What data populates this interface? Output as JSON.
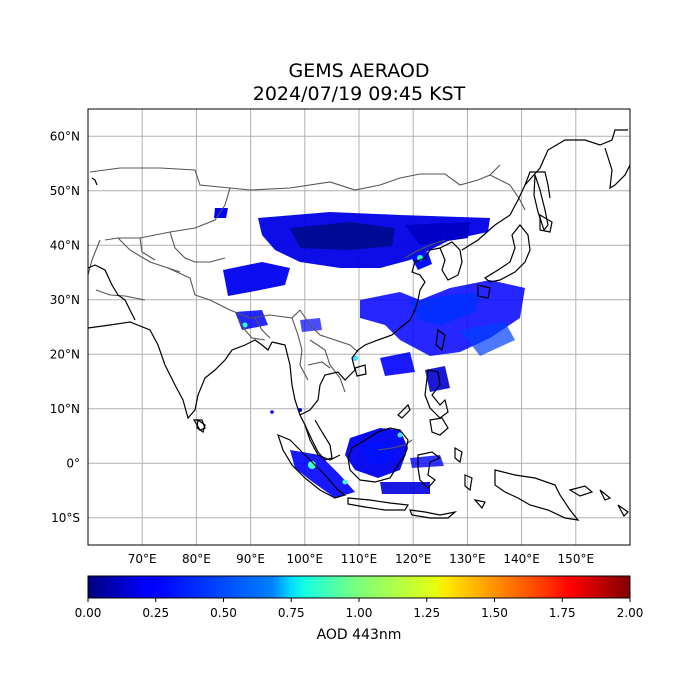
{
  "title_line1": "GEMS AERAOD",
  "title_line2": "2024/07/19 09:45 KST",
  "map": {
    "lon_range": [
      60,
      160
    ],
    "lat_range": [
      -15,
      65
    ],
    "lon_ticks": [
      {
        "value": 70,
        "label": "70°E"
      },
      {
        "value": 80,
        "label": "80°E"
      },
      {
        "value": 90,
        "label": "90°E"
      },
      {
        "value": 100,
        "label": "100°E"
      },
      {
        "value": 110,
        "label": "110°E"
      },
      {
        "value": 120,
        "label": "120°E"
      },
      {
        "value": 130,
        "label": "130°E"
      },
      {
        "value": 140,
        "label": "140°E"
      },
      {
        "value": 150,
        "label": "150°E"
      }
    ],
    "lat_ticks": [
      {
        "value": 60,
        "label": "60°N"
      },
      {
        "value": 50,
        "label": "50°N"
      },
      {
        "value": 40,
        "label": "40°N"
      },
      {
        "value": 30,
        "label": "30°N"
      },
      {
        "value": 20,
        "label": "20°N"
      },
      {
        "value": 10,
        "label": "10°N"
      },
      {
        "value": 0,
        "label": "0°"
      },
      {
        "value": -10,
        "label": "10°S"
      }
    ],
    "grid": true,
    "colors": {
      "coastline": "#000000",
      "borders": "#555555",
      "grid": "#b0b0b0"
    }
  },
  "colorbar": {
    "label": "AOD 443nm",
    "min": 0.0,
    "max": 2.0,
    "ticks": [
      "0.00",
      "0.25",
      "0.50",
      "0.75",
      "1.00",
      "1.25",
      "1.50",
      "1.75",
      "2.00"
    ],
    "colormap": "jet"
  }
}
